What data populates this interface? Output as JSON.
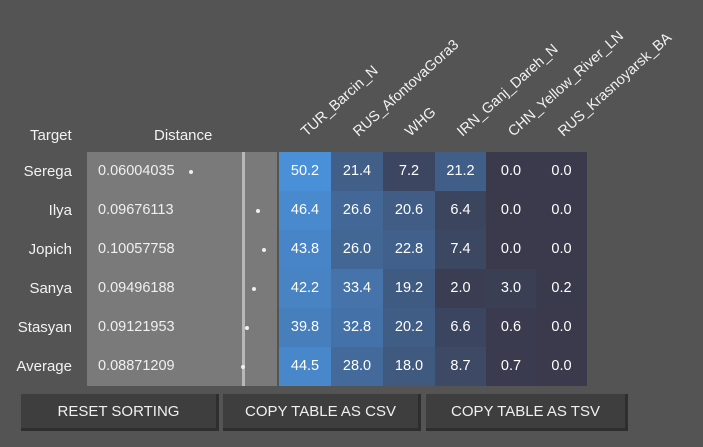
{
  "headers": {
    "target": "Target",
    "distance": "Distance"
  },
  "columns": [
    "TUR_Barcin_N",
    "RUS_AfontovaGora3",
    "WHG",
    "IRN_Ganj_Dareh_N",
    "CHN_Yellow_River_LN",
    "RUS_Krasnoyarsk_BA"
  ],
  "rows": [
    {
      "target": "Serega",
      "distance": "0.06004035",
      "values": [
        "50.2",
        "21.4",
        "7.2",
        "21.2",
        "0.0",
        "0.0"
      ]
    },
    {
      "target": "Ilya",
      "distance": "0.09676113",
      "values": [
        "46.4",
        "26.6",
        "20.6",
        "6.4",
        "0.0",
        "0.0"
      ]
    },
    {
      "target": "Jopich",
      "distance": "0.10057758",
      "values": [
        "43.8",
        "26.0",
        "22.8",
        "7.4",
        "0.0",
        "0.0"
      ]
    },
    {
      "target": "Sanya",
      "distance": "0.09496188",
      "values": [
        "42.2",
        "33.4",
        "19.2",
        "2.0",
        "3.0",
        "0.2"
      ]
    },
    {
      "target": "Stasyan",
      "distance": "0.09121953",
      "values": [
        "39.8",
        "32.8",
        "20.2",
        "6.6",
        "0.6",
        "0.0"
      ]
    },
    {
      "target": "Average",
      "distance": "0.08871209",
      "values": [
        "44.5",
        "28.0",
        "18.0",
        "8.7",
        "0.7",
        "0.0"
      ]
    }
  ],
  "buttons": {
    "reset": "RESET SORTING",
    "csv": "COPY TABLE AS CSV",
    "tsv": "COPY TABLE AS TSV"
  },
  "colors": {
    "background": "#545454",
    "distance_panel": "#7a7a7a",
    "heat_low": "#3a3a4a",
    "heat_high": "#4a90d9"
  }
}
